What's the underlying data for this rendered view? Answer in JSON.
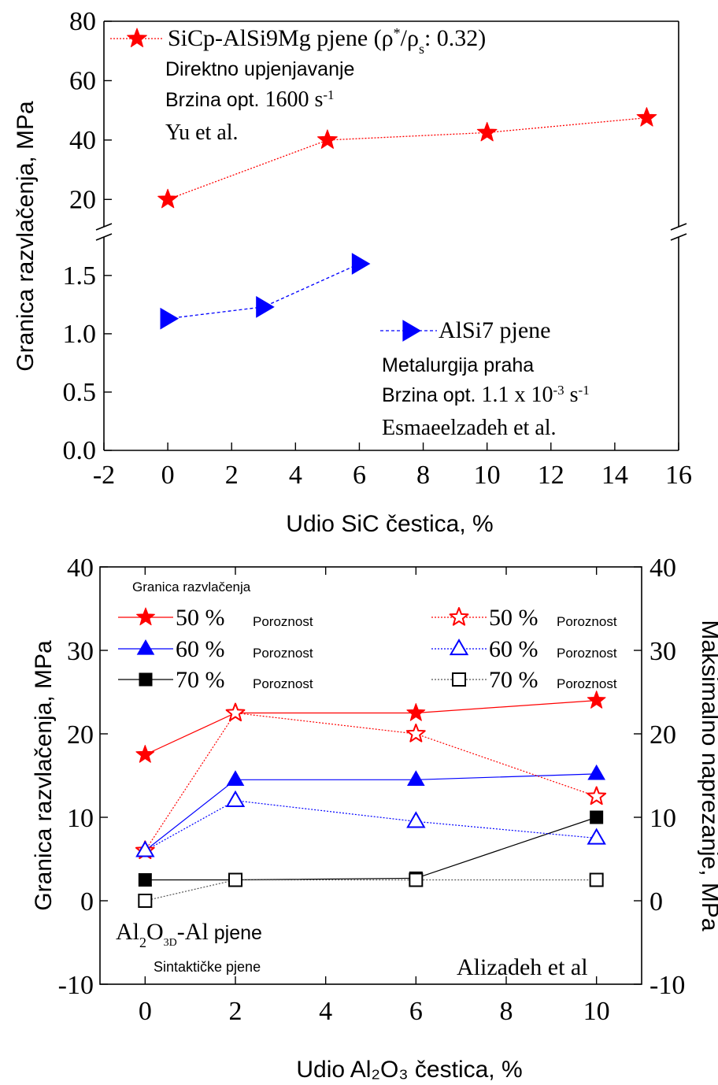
{
  "chart_data": [
    {
      "type": "line",
      "xlabel": "Udio SiC čestica, %",
      "ylabel": "Granica razvlačenja, MPa",
      "x_ticks": [
        "-2",
        "0",
        "2",
        "4",
        "6",
        "8",
        "10",
        "12",
        "14",
        "16"
      ],
      "xlim": [
        -2,
        16
      ],
      "upper_panel": {
        "ylim": [
          10,
          80
        ],
        "y_ticks": [
          "80",
          "60",
          "40",
          "20"
        ],
        "legend_placement": "top-left",
        "annotation": [
          {
            "text": "Direktno upjenjavanje"
          },
          {
            "text": "Brzina opt.",
            "value": "1600 s",
            "sup": "-1"
          },
          {
            "text": "Yu et al."
          }
        ]
      },
      "lower_panel": {
        "ylim": [
          0,
          1.85
        ],
        "y_ticks": [
          "1.5",
          "1.0",
          "0.5",
          "0.0"
        ],
        "legend_placement": "center-right",
        "annotation": [
          {
            "text": "Metalurgija praha"
          },
          {
            "text": "Brzina opt.",
            "value": "1.1 x 10",
            "sup1": "-3",
            "unit": " s",
            "sup2": "-1"
          },
          {
            "text": "Esmaeelzadeh et al."
          }
        ]
      },
      "series": [
        {
          "name_main": "SiCp-AlSi9Mg pjene (ρ",
          "name_sup": "*",
          "name_mid": "/ρ",
          "name_sub": "s",
          "name_end": ": 0.32)",
          "panel": "upper",
          "marker": "star",
          "color": "#ff0000",
          "x": [
            0,
            5,
            10,
            15
          ],
          "y": [
            20,
            40,
            42.5,
            47.5
          ]
        },
        {
          "name": "AlSi7 pjene",
          "panel": "lower",
          "marker": "triangle-right",
          "color": "#0000ff",
          "x": [
            0,
            3,
            6
          ],
          "y": [
            1.13,
            1.23,
            1.6
          ]
        }
      ]
    },
    {
      "type": "line",
      "xlabel": "Udio Al₂O₃ čestica, %",
      "ylabel_left": "Granica razvlačenja, MPa",
      "ylabel_right": "Maksimalno naprezanje, MPa",
      "categories": [
        "0",
        "2",
        "4",
        "6",
        "8",
        "10"
      ],
      "xlim": [
        -1,
        11
      ],
      "ylim": [
        -10,
        40
      ],
      "y_ticks": [
        "40",
        "30",
        "20",
        "10",
        "0",
        "-10"
      ],
      "legend_title": "Granica razvlačenja",
      "legend_placement": "top",
      "legend_word": "Poroznost",
      "annotation_left": {
        "line1_main": "Al",
        "line1_sub1": "2",
        "line1_mid": "O",
        "line1_sub2": "3D",
        "line1_end": "-Al",
        "line1_word": "pjene",
        "line2": "Sintaktičke pjene"
      },
      "annotation_right": "Alizadeh et al",
      "series": [
        {
          "name": "50 %",
          "marker": "star",
          "filled": true,
          "color": "#ff0000",
          "style": "solid",
          "x": [
            0,
            2,
            6,
            10
          ],
          "y": [
            17.5,
            22.5,
            22.5,
            24
          ]
        },
        {
          "name": "60 %",
          "marker": "triangle",
          "filled": true,
          "color": "#0000ff",
          "style": "solid",
          "x": [
            0,
            2,
            6,
            10
          ],
          "y": [
            6,
            14.5,
            14.5,
            15.2
          ]
        },
        {
          "name": "70 %",
          "marker": "square",
          "filled": true,
          "color": "#000000",
          "style": "solid",
          "x": [
            0,
            2,
            6,
            10
          ],
          "y": [
            2.5,
            2.5,
            2.7,
            10
          ]
        },
        {
          "name": "50 %",
          "marker": "star",
          "filled": false,
          "color": "#ff0000",
          "style": "dotted",
          "x": [
            0,
            2,
            6,
            10
          ],
          "y": [
            6,
            22.5,
            20,
            12.5
          ]
        },
        {
          "name": "60 %",
          "marker": "triangle",
          "filled": false,
          "color": "#0000ff",
          "style": "dotted",
          "x": [
            0,
            2,
            6,
            10
          ],
          "y": [
            6,
            12,
            9.5,
            7.5
          ]
        },
        {
          "name": "70 %",
          "marker": "square",
          "filled": false,
          "color": "#000000",
          "style": "dotted",
          "x": [
            0,
            2,
            6,
            10
          ],
          "y": [
            0,
            2.5,
            2.5,
            2.5
          ]
        }
      ]
    }
  ]
}
